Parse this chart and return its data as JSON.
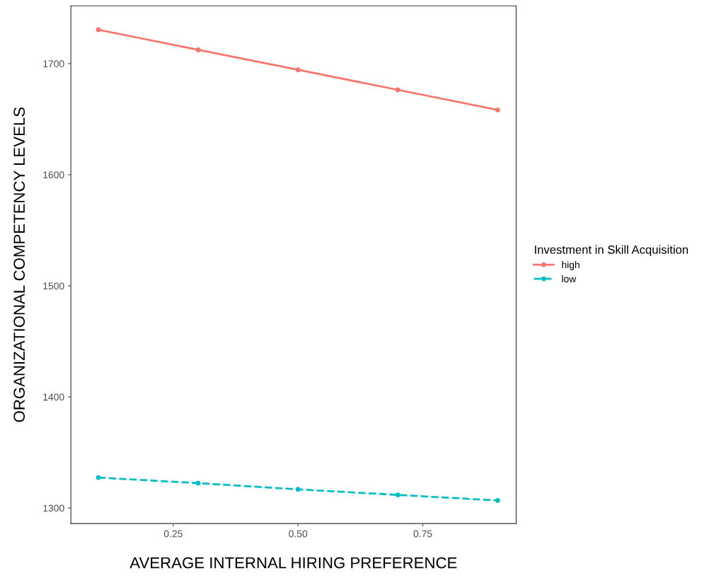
{
  "chart_data": {
    "type": "line",
    "xlabel": "AVERAGE INTERNAL HIRING PREFERENCE",
    "ylabel": "ORGANIZATIONAL COMPETENCY LEVELS",
    "legend_title": "Investment in Skill Acquisition",
    "x": [
      0.1,
      0.3,
      0.5,
      0.7,
      0.9
    ],
    "series": [
      {
        "name": "high",
        "color": "#f8766d",
        "line_style": "solid",
        "values": [
          1730.5,
          1712.4,
          1694.4,
          1676.4,
          1658.3
        ]
      },
      {
        "name": "low",
        "color": "#00bfc4",
        "line_style": "dashed",
        "values": [
          1327.4,
          1322.4,
          1316.8,
          1311.8,
          1306.8
        ]
      }
    ],
    "xlim": [
      0.045,
      0.937
    ],
    "xticks": [
      {
        "value": 0.25,
        "label": "0.25"
      },
      {
        "value": 0.5,
        "label": "0.50"
      },
      {
        "value": 0.75,
        "label": "0.75"
      }
    ],
    "ylim": [
      1286,
      1752
    ],
    "yticks": [
      1300,
      1400,
      1500,
      1600,
      1700
    ],
    "grid": false,
    "legend": "right",
    "marker": "circle"
  }
}
